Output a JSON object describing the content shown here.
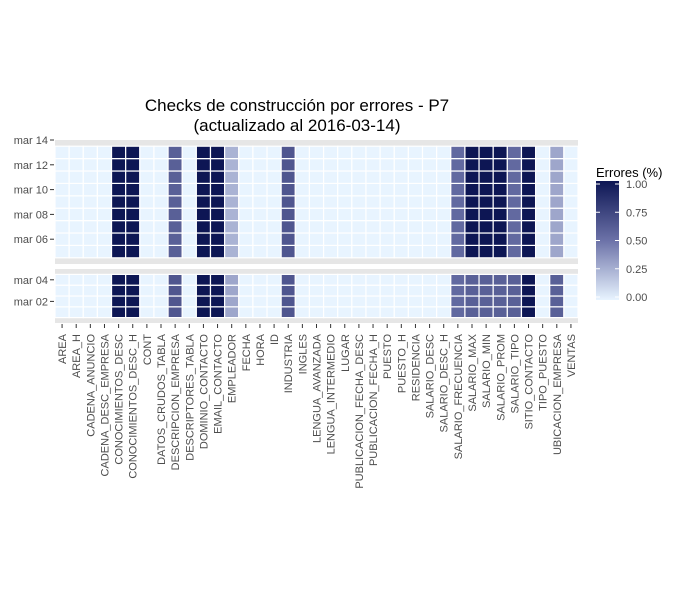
{
  "chart_data": {
    "type": "heatmap",
    "title": "Checks de construcción por errores - P7",
    "subtitle": "(actualizado al 2016-03-14)",
    "xlabel": "",
    "ylabel": "",
    "x_categories": [
      "AREA",
      "AREA_H",
      "CADENA_ANUNCIO",
      "CADENA_DESC_EMPRESA",
      "CONOCIMIENTOS_DESC",
      "CONOCIMIENTOS_DESC_H",
      "CONT",
      "DATOS_CRUDOS_TABLA",
      "DESCRIPCION_EMPRESA",
      "DESCRIPTORES_TABLA",
      "DOMINIO_CONTACTO",
      "EMAIL_CONTACTO",
      "EMPLEADOR",
      "FECHA",
      "HORA",
      "ID",
      "INDUSTRIA",
      "INGLES",
      "LENGUA_AVANZADA",
      "LENGUA_INTERMEDIO",
      "LUGAR",
      "PUBLICACION_FECHA_DESC",
      "PUBLICACION_FECHA_H",
      "PUESTO",
      "PUESTO_H",
      "RESIDENCIA",
      "SALARIO_DESC",
      "SALARIO_DESC_H",
      "SALARIO_FRECUENCIA",
      "SALARIO_MAX",
      "SALARIO_MIN",
      "SALARIO_PROM",
      "SALARIO_TIPO",
      "SITIO_CONTACTO",
      "TIPO_PUESTO",
      "UBICACION_EMPRESA",
      "VENTAS"
    ],
    "facets": [
      {
        "name": "week2",
        "dates": [
          "mar 05",
          "mar 06",
          "mar 07",
          "mar 08",
          "mar 09",
          "mar 10",
          "mar 11",
          "mar 12",
          "mar 13"
        ]
      },
      {
        "name": "week1",
        "dates": [
          "mar 01",
          "mar 02",
          "mar 03",
          "mar 04"
        ]
      }
    ],
    "y_ticks": {
      "week2": [
        "mar 06",
        "mar 08",
        "mar 10",
        "mar 12",
        "mar 14"
      ],
      "week1": [
        "mar 02",
        "mar 04"
      ]
    },
    "values_week2": [
      0,
      0,
      0,
      0,
      1,
      1,
      0,
      0,
      0.6,
      0,
      1,
      1,
      0.25,
      0,
      0,
      0,
      0.65,
      0,
      0,
      0,
      0,
      0,
      0,
      0,
      0,
      0,
      0,
      0,
      0.55,
      1,
      1,
      1,
      0.55,
      1,
      0,
      0.3,
      0
    ],
    "values_week1": [
      0,
      0,
      0,
      0,
      1,
      1,
      0,
      0,
      0.65,
      0,
      1,
      1,
      0.3,
      0,
      0,
      0,
      0.65,
      0,
      0,
      0,
      0,
      0,
      0,
      0,
      0,
      0,
      0,
      0,
      0.55,
      0.6,
      0.6,
      0.6,
      0.6,
      1,
      0,
      0.6,
      0
    ],
    "legend": {
      "title": "Errores (%)",
      "ticks": [
        "0.00",
        "0.25",
        "0.50",
        "0.75",
        "1.00"
      ],
      "range": [
        0,
        1
      ]
    },
    "colors": {
      "low": "#e8f4ff",
      "high": "#0d1654",
      "cell_border": "#ffffff",
      "panel_bg": "#e6e6e6"
    }
  }
}
